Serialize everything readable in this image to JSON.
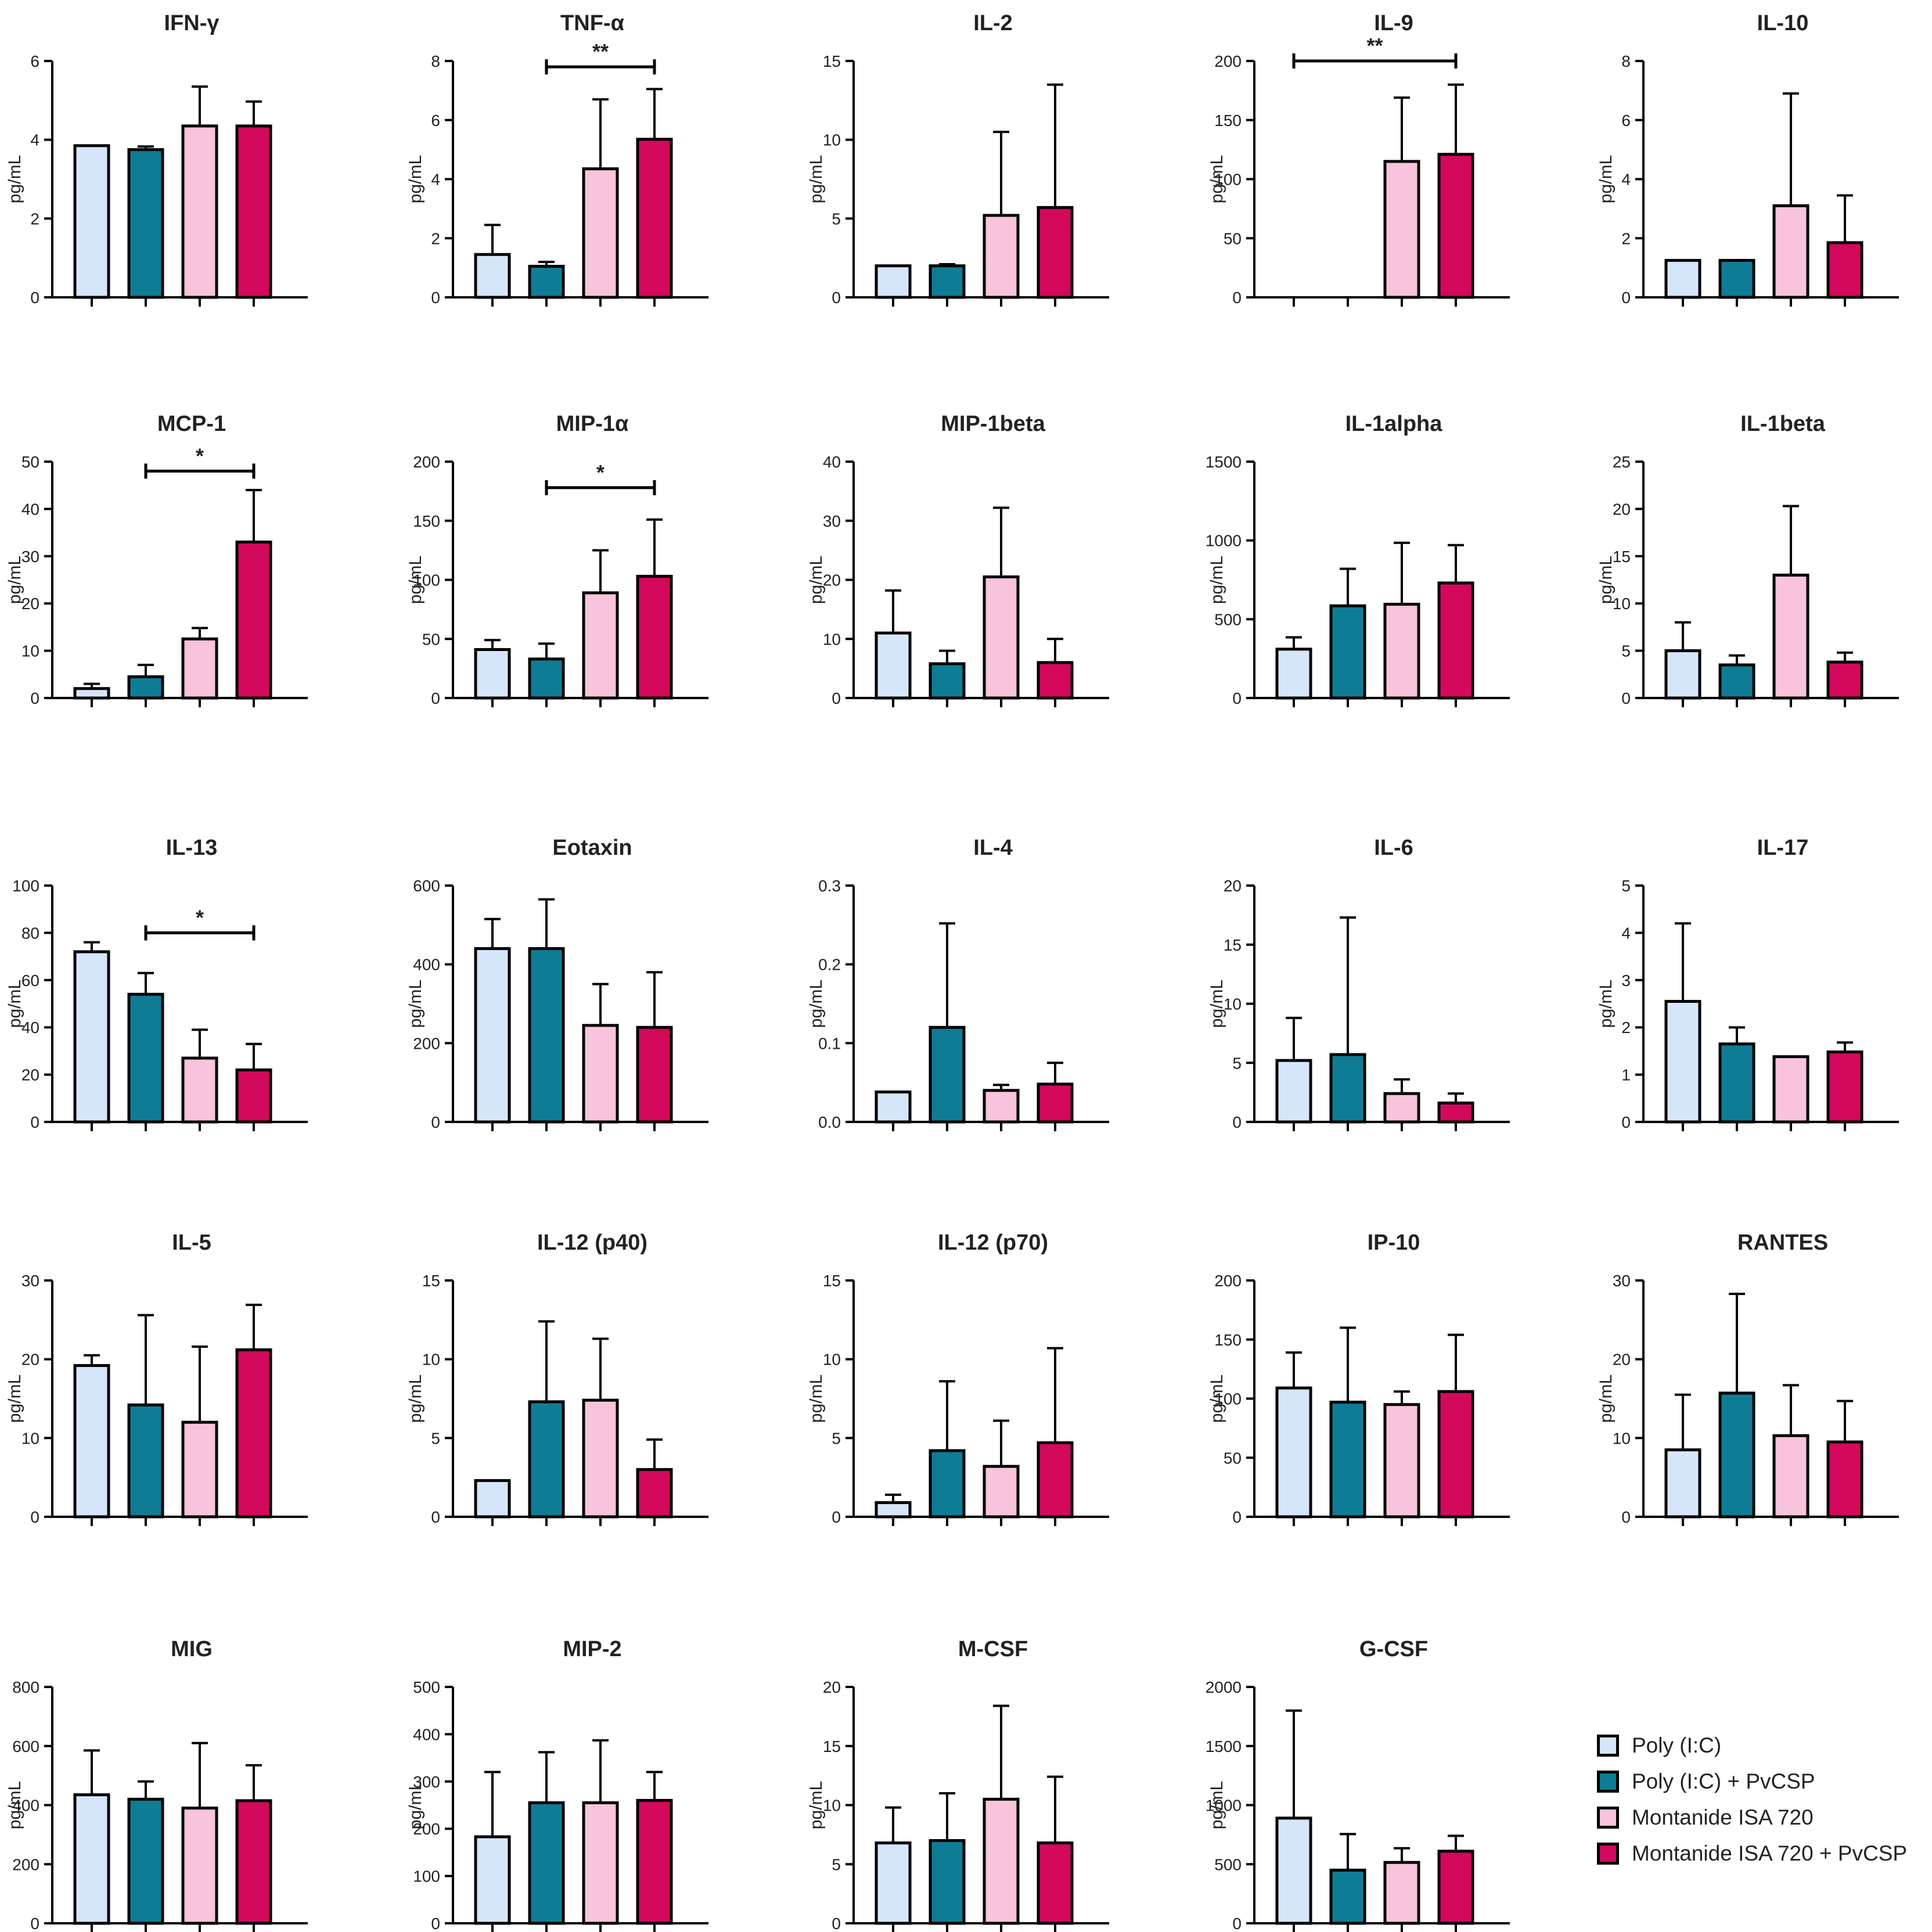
{
  "chart_data": [
    {
      "type": "bar",
      "title": "IFN-γ",
      "ylabel": "pg/mL",
      "ylim": [
        0,
        6
      ],
      "yticks": [
        0,
        2,
        4,
        6
      ],
      "tick_labels": [
        "0",
        "2",
        "4",
        "6"
      ],
      "values": [
        3.85,
        3.75,
        4.35,
        4.35
      ],
      "errors": [
        0,
        0.08,
        1.0,
        0.62
      ],
      "sig": []
    },
    {
      "type": "bar",
      "title": "TNF-α",
      "ylabel": "pg/mL",
      "ylim": [
        0,
        8
      ],
      "yticks": [
        0,
        2,
        4,
        6,
        8
      ],
      "tick_labels": [
        "0",
        "2",
        "4",
        "6",
        "8"
      ],
      "values": [
        1.45,
        1.05,
        4.35,
        5.35
      ],
      "errors": [
        1.0,
        0.15,
        2.35,
        1.7
      ],
      "sig": [
        {
          "from": 1,
          "to": 3,
          "label": "**",
          "value": 7.8
        }
      ]
    },
    {
      "type": "bar",
      "title": "IL-2",
      "ylabel": "pg/mL",
      "ylim": [
        0,
        15
      ],
      "yticks": [
        0,
        5,
        10,
        15
      ],
      "tick_labels": [
        "0",
        "5",
        "10",
        "15"
      ],
      "values": [
        2.0,
        2.0,
        5.2,
        5.7
      ],
      "errors": [
        0,
        0.1,
        5.3,
        7.8
      ],
      "sig": []
    },
    {
      "type": "bar",
      "title": "IL-9",
      "ylabel": "pg/mL",
      "ylim": [
        0,
        200
      ],
      "yticks": [
        0,
        50,
        100,
        150,
        200
      ],
      "tick_labels": [
        "0",
        "50",
        "100",
        "150",
        "200"
      ],
      "values": [
        0,
        0,
        115,
        121
      ],
      "errors": [
        0,
        0,
        54,
        59
      ],
      "sig": [
        {
          "from": 0,
          "to": 3,
          "label": "**",
          "value": 200
        }
      ]
    },
    {
      "type": "bar",
      "title": "IL-10",
      "ylabel": "pg/mL",
      "ylim": [
        0,
        8
      ],
      "yticks": [
        0,
        2,
        4,
        6,
        8
      ],
      "tick_labels": [
        "0",
        "2",
        "4",
        "6",
        "8"
      ],
      "values": [
        1.25,
        1.25,
        3.1,
        1.85
      ],
      "errors": [
        0,
        0,
        3.8,
        1.6
      ],
      "sig": []
    },
    {
      "type": "bar",
      "title": "MCP-1",
      "ylabel": "pg/mL",
      "ylim": [
        0,
        50
      ],
      "yticks": [
        0,
        10,
        20,
        30,
        40,
        50
      ],
      "tick_labels": [
        "0",
        "10",
        "20",
        "30",
        "40",
        "50"
      ],
      "values": [
        2.0,
        4.5,
        12.5,
        33.0
      ],
      "errors": [
        1.0,
        2.5,
        2.3,
        11.0
      ],
      "sig": [
        {
          "from": 1,
          "to": 3,
          "label": "*",
          "value": 48
        }
      ]
    },
    {
      "type": "bar",
      "title": "MIP-1α",
      "ylabel": "pg/mL",
      "ylim": [
        0,
        200
      ],
      "yticks": [
        0,
        50,
        100,
        150,
        200
      ],
      "tick_labels": [
        "0",
        "50",
        "100",
        "150",
        "200"
      ],
      "values": [
        41,
        33,
        89,
        103
      ],
      "errors": [
        8,
        13,
        36,
        48
      ],
      "sig": [
        {
          "from": 1,
          "to": 3,
          "label": "*",
          "value": 178
        }
      ]
    },
    {
      "type": "bar",
      "title": "MIP-1beta",
      "ylabel": "pg/mL",
      "ylim": [
        0,
        40
      ],
      "yticks": [
        0,
        10,
        20,
        30,
        40
      ],
      "tick_labels": [
        "0",
        "10",
        "20",
        "30",
        "40"
      ],
      "values": [
        11,
        5.8,
        20.5,
        6.0
      ],
      "errors": [
        7.2,
        2.2,
        11.7,
        4.0
      ],
      "sig": []
    },
    {
      "type": "bar",
      "title": "IL-1alpha",
      "ylabel": "pg/mL",
      "ylim": [
        0,
        1500
      ],
      "yticks": [
        0,
        500,
        1000,
        1500
      ],
      "tick_labels": [
        "0",
        "500",
        "1000",
        "1500"
      ],
      "values": [
        310,
        585,
        595,
        730
      ],
      "errors": [
        75,
        235,
        390,
        240
      ],
      "sig": []
    },
    {
      "type": "bar",
      "title": "IL-1beta",
      "ylabel": "pg/mL",
      "ylim": [
        0,
        25
      ],
      "yticks": [
        0,
        5,
        10,
        15,
        20,
        25
      ],
      "tick_labels": [
        "0",
        "5",
        "10",
        "15",
        "20",
        "25"
      ],
      "values": [
        5.0,
        3.5,
        13.0,
        3.8
      ],
      "errors": [
        3.0,
        1.0,
        7.3,
        1.0
      ],
      "sig": []
    },
    {
      "type": "bar",
      "title": "IL-13",
      "ylabel": "pg/mL",
      "ylim": [
        0,
        100
      ],
      "yticks": [
        0,
        20,
        40,
        60,
        80,
        100
      ],
      "tick_labels": [
        "0",
        "20",
        "40",
        "60",
        "80",
        "100"
      ],
      "values": [
        72,
        54,
        27,
        22
      ],
      "errors": [
        4,
        9,
        12,
        11
      ],
      "sig": [
        {
          "from": 1,
          "to": 3,
          "label": "*",
          "value": 80
        }
      ]
    },
    {
      "type": "bar",
      "title": "Eotaxin",
      "ylabel": "pg/mL",
      "ylim": [
        0,
        600
      ],
      "yticks": [
        0,
        200,
        400,
        600
      ],
      "tick_labels": [
        "0",
        "200",
        "400",
        "600"
      ],
      "values": [
        440,
        440,
        245,
        240
      ],
      "errors": [
        75,
        125,
        105,
        140
      ],
      "sig": []
    },
    {
      "type": "bar",
      "title": "IL-4",
      "ylabel": "pg/mL",
      "ylim": [
        0,
        0.3
      ],
      "yticks": [
        0,
        0.1,
        0.2,
        0.3
      ],
      "tick_labels": [
        "0.0",
        "0.1",
        "0.2",
        "0.3"
      ],
      "values": [
        0.038,
        0.12,
        0.04,
        0.048
      ],
      "errors": [
        0,
        0.132,
        0.007,
        0.027
      ],
      "sig": []
    },
    {
      "type": "bar",
      "title": "IL-6",
      "ylabel": "pg/mL",
      "ylim": [
        0,
        20
      ],
      "yticks": [
        0,
        5,
        10,
        15,
        20
      ],
      "tick_labels": [
        "0",
        "5",
        "10",
        "15",
        "20"
      ],
      "values": [
        5.2,
        5.7,
        2.4,
        1.6
      ],
      "errors": [
        3.6,
        11.6,
        1.2,
        0.8
      ],
      "sig": []
    },
    {
      "type": "bar",
      "title": "IL-17",
      "ylabel": "pg/mL",
      "ylim": [
        0,
        5
      ],
      "yticks": [
        0,
        1,
        2,
        3,
        4,
        5
      ],
      "tick_labels": [
        "0",
        "1",
        "2",
        "3",
        "4",
        "5"
      ],
      "values": [
        2.55,
        1.65,
        1.38,
        1.48
      ],
      "errors": [
        1.65,
        0.35,
        0,
        0.2
      ],
      "sig": []
    },
    {
      "type": "bar",
      "title": "IL-5",
      "ylabel": "pg/mL",
      "ylim": [
        0,
        30
      ],
      "yticks": [
        0,
        10,
        20,
        30
      ],
      "tick_labels": [
        "0",
        "10",
        "20",
        "30"
      ],
      "values": [
        19.2,
        14.2,
        12.0,
        21.2
      ],
      "errors": [
        1.3,
        11.4,
        9.6,
        5.7
      ],
      "sig": []
    },
    {
      "type": "bar",
      "title": "IL-12 (p40)",
      "ylabel": "pg/mL",
      "ylim": [
        0,
        15
      ],
      "yticks": [
        0,
        5,
        10,
        15
      ],
      "tick_labels": [
        "0",
        "5",
        "10",
        "15"
      ],
      "values": [
        2.3,
        7.3,
        7.4,
        3.0
      ],
      "errors": [
        0,
        5.1,
        3.9,
        1.9
      ],
      "sig": []
    },
    {
      "type": "bar",
      "title": "IL-12 (p70)",
      "ylabel": "pg/mL",
      "ylim": [
        0,
        15
      ],
      "yticks": [
        0,
        5,
        10,
        15
      ],
      "tick_labels": [
        "0",
        "5",
        "10",
        "15"
      ],
      "values": [
        0.9,
        4.2,
        3.2,
        4.7
      ],
      "errors": [
        0.5,
        4.4,
        2.9,
        6.0
      ],
      "sig": []
    },
    {
      "type": "bar",
      "title": "IP-10",
      "ylabel": "pg/mL",
      "ylim": [
        0,
        200
      ],
      "yticks": [
        0,
        50,
        100,
        150,
        200
      ],
      "tick_labels": [
        "0",
        "50",
        "100",
        "150",
        "200"
      ],
      "values": [
        109,
        97,
        95,
        106
      ],
      "errors": [
        30,
        63,
        11,
        48
      ],
      "sig": []
    },
    {
      "type": "bar",
      "title": "RANTES",
      "ylabel": "pg/mL",
      "ylim": [
        0,
        30
      ],
      "yticks": [
        0,
        10,
        20,
        30
      ],
      "tick_labels": [
        "0",
        "10",
        "20",
        "30"
      ],
      "values": [
        8.5,
        15.7,
        10.3,
        9.5
      ],
      "errors": [
        7.0,
        12.6,
        6.4,
        5.2
      ],
      "sig": []
    },
    {
      "type": "bar",
      "title": "MIG",
      "ylabel": "pg/mL",
      "ylim": [
        0,
        800
      ],
      "yticks": [
        0,
        200,
        400,
        600,
        800
      ],
      "tick_labels": [
        "0",
        "200",
        "400",
        "600",
        "800"
      ],
      "values": [
        435,
        420,
        390,
        415
      ],
      "errors": [
        150,
        60,
        220,
        120
      ],
      "sig": []
    },
    {
      "type": "bar",
      "title": "MIP-2",
      "ylabel": "pg/mL",
      "ylim": [
        0,
        500
      ],
      "yticks": [
        0,
        100,
        200,
        300,
        400,
        500
      ],
      "tick_labels": [
        "0",
        "100",
        "200",
        "300",
        "400",
        "500"
      ],
      "values": [
        183,
        255,
        255,
        260
      ],
      "errors": [
        137,
        107,
        132,
        60
      ],
      "sig": []
    },
    {
      "type": "bar",
      "title": "M-CSF",
      "ylabel": "pg/mL",
      "ylim": [
        0,
        20
      ],
      "yticks": [
        0,
        5,
        10,
        15,
        20
      ],
      "tick_labels": [
        "0",
        "5",
        "10",
        "15",
        "20"
      ],
      "values": [
        6.8,
        7.0,
        10.5,
        6.8
      ],
      "errors": [
        3.0,
        4.0,
        7.9,
        5.6
      ],
      "sig": []
    },
    {
      "type": "bar",
      "title": "G-CSF",
      "ylabel": "pg/mL",
      "ylim": [
        0,
        2000
      ],
      "yticks": [
        0,
        500,
        1000,
        1500,
        2000
      ],
      "tick_labels": [
        "0",
        "500",
        "1000",
        "1500",
        "2000"
      ],
      "values": [
        890,
        450,
        515,
        610
      ],
      "errors": [
        910,
        305,
        120,
        130
      ],
      "sig": []
    }
  ],
  "legend": {
    "placement": "bottom-right",
    "entries": [
      {
        "label": "Poly (I:C)",
        "color": "#d6e6fa"
      },
      {
        "label": "Poly (I:C) + PvCSP",
        "color": "#0f7c95"
      },
      {
        "label": "Montanide ISA 720",
        "color": "#f8c3dc"
      },
      {
        "label": "Montanide ISA 720 + PvCSP",
        "color": "#d3095c"
      }
    ]
  },
  "colors": {
    "axis": "#000000",
    "error_bar": "#000000",
    "background": "#ffffff"
  }
}
